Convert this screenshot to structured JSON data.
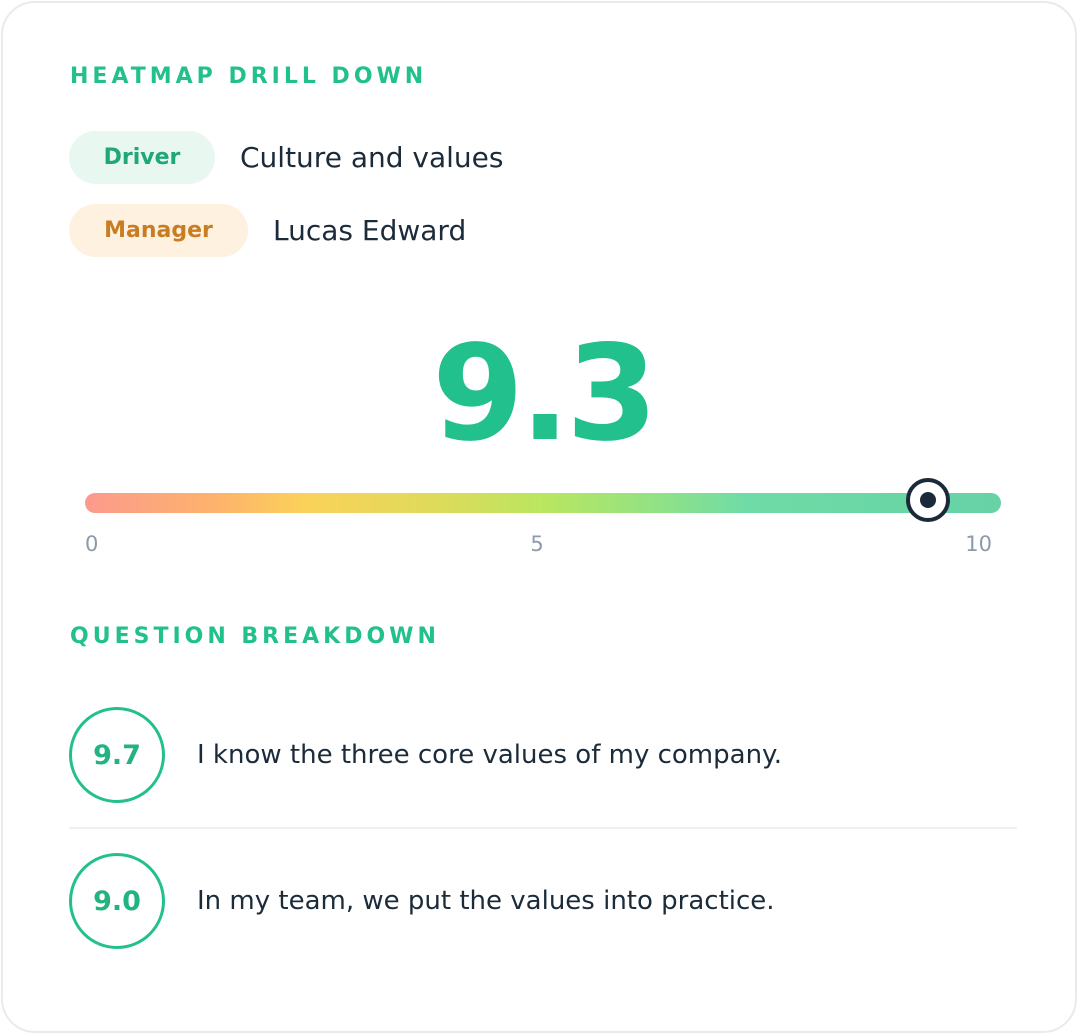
{
  "heatmap": {
    "title": "HEATMAP DRILL DOWN",
    "filters": [
      {
        "label": "Driver",
        "value": "Culture and values",
        "color": "#1fa876",
        "background": "#e8f8f1"
      },
      {
        "label": "Manager",
        "value": "Lucas Edward",
        "color": "#c97d22",
        "background": "#fef1e0"
      }
    ],
    "score": "9.3",
    "score_value": 9.3,
    "scale": {
      "min": 0,
      "max": 10,
      "ticks": [
        "0",
        "5",
        "10"
      ],
      "gradient": [
        "#fc9a8d",
        "#fbd259",
        "#b9e660",
        "#66d2a6"
      ]
    },
    "accent_color": "#22c08c"
  },
  "breakdown": {
    "title": "QUESTION BREAKDOWN",
    "questions": [
      {
        "score": "9.7",
        "text": "I know the three core values of my company."
      },
      {
        "score": "9.0",
        "text": "In my team, we put the values into practice."
      }
    ]
  }
}
